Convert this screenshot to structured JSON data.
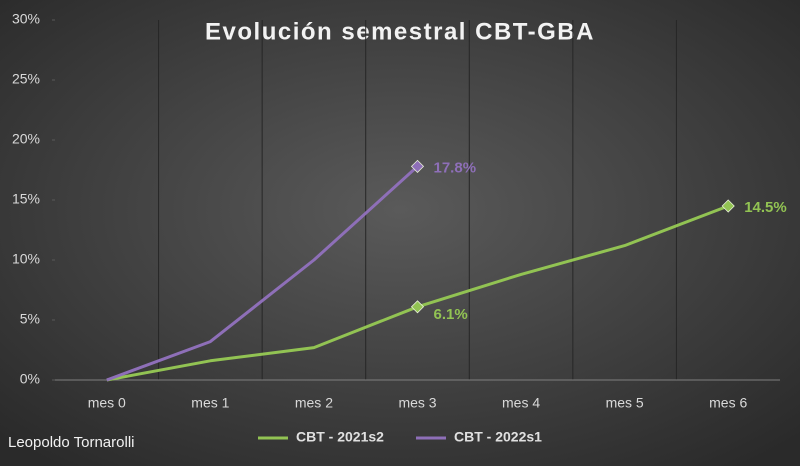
{
  "chart_data": {
    "type": "line",
    "title": "Evolución semestral CBT-GBA",
    "annotation": "Leopoldo Tornarolli",
    "categories": [
      "mes 0",
      "mes 1",
      "mes 2",
      "mes 3",
      "mes 4",
      "mes 5",
      "mes 6"
    ],
    "series": [
      {
        "name": "CBT - 2021s2",
        "color": "#92c353",
        "values": [
          0,
          1.6,
          2.7,
          6.1,
          8.8,
          11.2,
          14.5
        ],
        "value_labels": [
          null,
          null,
          null,
          "6.1%",
          null,
          null,
          "14.5%"
        ]
      },
      {
        "name": "CBT - 2022s1",
        "color": "#8e6fb8",
        "values": [
          0,
          3.2,
          10,
          17.8,
          null,
          null,
          null
        ],
        "value_labels": [
          null,
          null,
          null,
          "17.8%",
          null,
          null,
          null
        ]
      }
    ],
    "ylim": [
      0,
      30
    ],
    "yticks": [
      {
        "value": 0,
        "label": "0%"
      },
      {
        "value": 5,
        "label": "5%"
      },
      {
        "value": 10,
        "label": "10%"
      },
      {
        "value": 15,
        "label": "15%"
      },
      {
        "value": 20,
        "label": "20%"
      },
      {
        "value": 25,
        "label": "25%"
      },
      {
        "value": 30,
        "label": "30%"
      }
    ],
    "legend": "bottom"
  }
}
